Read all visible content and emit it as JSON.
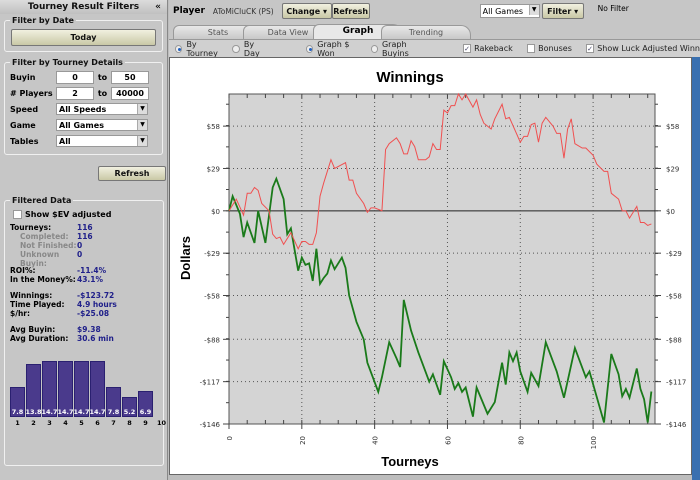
{
  "left_panel": {
    "title": "Tourney Result Filters",
    "collapse_icon": "«",
    "date": {
      "legend": "Filter by Date",
      "today": "Today"
    },
    "details": {
      "legend": "Filter by Tourney Details",
      "buyin_label": "Buyin",
      "buyin_from": "0",
      "to1": "to",
      "buyin_to": "50",
      "players_label": "# Players",
      "players_from": "2",
      "to2": "to",
      "players_to": "40000",
      "speed_label": "Speed",
      "speed_value": "All Speeds",
      "game_label": "Game",
      "game_value": "All Games",
      "tables_label": "Tables",
      "tables_value": "All"
    },
    "refresh": "Refresh",
    "filtered": {
      "legend": "Filtered Data",
      "ev_label": "Show $EV adjusted",
      "stats": [
        {
          "k": "Tourneys:",
          "v": "116",
          "sub": false
        },
        {
          "k": "Completed:",
          "v": "116",
          "sub": true
        },
        {
          "k": "Not Finished:",
          "v": "0",
          "sub": true
        },
        {
          "k": "Unknown Buyin:",
          "v": "0",
          "sub": true
        },
        {
          "k": "ROI%:",
          "v": "-11.4%",
          "sub": false,
          "gap": true
        },
        {
          "k": "In the Money%:",
          "v": "43.1%",
          "sub": false
        },
        {
          "k": "Winnings:",
          "v": "-$123.72",
          "sub": false,
          "gap": true
        },
        {
          "k": "Time Played:",
          "v": "4.9 hours",
          "sub": false
        },
        {
          "k": "$/hr:",
          "v": "-$25.08",
          "sub": false
        },
        {
          "k": "Avg Buyin:",
          "v": "$9.38",
          "sub": false,
          "gap": true
        },
        {
          "k": "Avg Duration:",
          "v": "30.6 min",
          "sub": false
        }
      ],
      "histogram": {
        "labels": [
          "1",
          "2",
          "3",
          "4",
          "5",
          "6",
          "7",
          "8",
          "9",
          "10"
        ],
        "values": [
          7.8,
          13.8,
          14.7,
          14.7,
          14.7,
          14.7,
          7.8,
          5.2,
          6.9,
          null
        ],
        "value_labels": [
          "7.8",
          "13.8",
          "14.7",
          "14.7",
          "14.7",
          "14.7",
          "7.8",
          "5.2",
          "6.9",
          ""
        ]
      }
    }
  },
  "toolbar": {
    "player_label": "Player",
    "player_name": "AToMiCluCK (PS)",
    "change": "Change",
    "change_arrow": "▾",
    "refresh": "Refresh",
    "games_value": "All Games",
    "filter": "Filter",
    "filter_arrow": "▾",
    "filter_status": "No Filter"
  },
  "tabs": [
    {
      "label": "Stats"
    },
    {
      "label": "Data View"
    },
    {
      "label": "Graph",
      "active": true
    },
    {
      "label": "Trending"
    }
  ],
  "options": {
    "by_tourney": "By Tourney",
    "by_day": "By Day",
    "graph_won": "Graph $ Won",
    "graph_buyins": "Graph Buyins",
    "rakeback": "Rakeback",
    "bonuses": "Bonuses",
    "luck": "Show Luck Adjusted Winn",
    "check": "✓"
  },
  "colors": {
    "actual": "#1a7a1a",
    "luck": "#f05050"
  },
  "chart_data": {
    "type": "line",
    "title": "Winnings",
    "xlabel": "Tourneys",
    "ylabel": "Dollars",
    "xlim": [
      0,
      117
    ],
    "ylim": [
      -146,
      80
    ],
    "xticks": [
      0,
      20,
      40,
      60,
      80,
      100
    ],
    "yticks": [
      {
        "v": 58,
        "l": "$58"
      },
      {
        "v": 29,
        "l": "$29"
      },
      {
        "v": 0,
        "l": "$0"
      },
      {
        "v": -29,
        "l": "-$29"
      },
      {
        "v": -58,
        "l": "-$58"
      },
      {
        "v": -88,
        "l": "-$88"
      },
      {
        "v": -117,
        "l": "-$117"
      },
      {
        "v": -146,
        "l": "-$146"
      }
    ],
    "grid": true,
    "series": [
      {
        "name": "Winnings",
        "color": "#1a7a1a",
        "points": [
          [
            0,
            0
          ],
          [
            1,
            10
          ],
          [
            3,
            -2
          ],
          [
            4,
            -18
          ],
          [
            5,
            -8
          ],
          [
            7,
            -22
          ],
          [
            8,
            0
          ],
          [
            10,
            -22
          ],
          [
            12,
            16
          ],
          [
            13,
            22
          ],
          [
            15,
            8
          ],
          [
            16,
            -16
          ],
          [
            17,
            -12
          ],
          [
            19,
            -41
          ],
          [
            20,
            -32
          ],
          [
            21,
            -37
          ],
          [
            22,
            -36
          ],
          [
            23,
            -48
          ],
          [
            24,
            -26
          ],
          [
            25,
            -50
          ],
          [
            26,
            -46
          ],
          [
            27,
            -43
          ],
          [
            28,
            -34
          ],
          [
            29,
            -40
          ],
          [
            31,
            -32
          ],
          [
            32,
            -39
          ],
          [
            33,
            -58
          ],
          [
            35,
            -76
          ],
          [
            37,
            -88
          ],
          [
            38,
            -104
          ],
          [
            41,
            -124
          ],
          [
            42,
            -114
          ],
          [
            44,
            -90
          ],
          [
            46,
            -101
          ],
          [
            47,
            -107
          ],
          [
            48,
            -61
          ],
          [
            50,
            -82
          ],
          [
            52,
            -97
          ],
          [
            55,
            -117
          ],
          [
            56,
            -112
          ],
          [
            58,
            -126
          ],
          [
            59,
            -103
          ],
          [
            61,
            -114
          ],
          [
            62,
            -122
          ],
          [
            63,
            -118
          ],
          [
            64,
            -124
          ],
          [
            65,
            -121
          ],
          [
            67,
            -141
          ],
          [
            68,
            -121
          ],
          [
            71,
            -139
          ],
          [
            73,
            -131
          ],
          [
            75,
            -104
          ],
          [
            76,
            -119
          ],
          [
            77,
            -97
          ],
          [
            78,
            -103
          ],
          [
            79,
            -97
          ],
          [
            80,
            -110
          ],
          [
            82,
            -124
          ],
          [
            83,
            -111
          ],
          [
            85,
            -120
          ],
          [
            87,
            -90
          ],
          [
            90,
            -110
          ],
          [
            92,
            -128
          ],
          [
            95,
            -94
          ],
          [
            98,
            -114
          ],
          [
            99,
            -110
          ],
          [
            103,
            -145
          ],
          [
            105,
            -98
          ],
          [
            107,
            -112
          ],
          [
            108,
            -127
          ],
          [
            109,
            -122
          ],
          [
            110,
            -128
          ],
          [
            112,
            -108
          ],
          [
            113,
            -122
          ],
          [
            114,
            -129
          ],
          [
            115,
            -145
          ],
          [
            116,
            -123.72
          ]
        ]
      },
      {
        "name": "Luck Adjusted",
        "color": "#f05050",
        "points": [
          [
            0,
            0
          ],
          [
            2,
            8
          ],
          [
            4,
            -3
          ],
          [
            5,
            12
          ],
          [
            6,
            12
          ],
          [
            7,
            16
          ],
          [
            8,
            14
          ],
          [
            9,
            5
          ],
          [
            11,
            0
          ],
          [
            12,
            -16
          ],
          [
            13,
            -19
          ],
          [
            14,
            -18
          ],
          [
            15,
            -23
          ],
          [
            17,
            -15
          ],
          [
            19,
            -26
          ],
          [
            20,
            -21
          ],
          [
            21,
            -21
          ],
          [
            22,
            -23
          ],
          [
            23,
            -23
          ],
          [
            24,
            -15
          ],
          [
            25,
            10
          ],
          [
            26,
            19
          ],
          [
            28,
            35
          ],
          [
            29,
            29
          ],
          [
            32,
            33
          ],
          [
            33,
            21
          ],
          [
            34,
            21
          ],
          [
            35,
            12
          ],
          [
            37,
            5
          ],
          [
            38,
            -1
          ],
          [
            39,
            2
          ],
          [
            40,
            2
          ],
          [
            42,
            0
          ],
          [
            43,
            42
          ],
          [
            44,
            46
          ],
          [
            46,
            50
          ],
          [
            47,
            46
          ],
          [
            48,
            39
          ],
          [
            49,
            39
          ],
          [
            50,
            48
          ],
          [
            51,
            44
          ],
          [
            52,
            35
          ],
          [
            54,
            35
          ],
          [
            55,
            37
          ],
          [
            56,
            46
          ],
          [
            57,
            42
          ],
          [
            58,
            42
          ],
          [
            59,
            69
          ],
          [
            60,
            67
          ],
          [
            61,
            72
          ],
          [
            62,
            72
          ],
          [
            63,
            80
          ],
          [
            64,
            76
          ],
          [
            65,
            80
          ],
          [
            67,
            71
          ],
          [
            68,
            76
          ],
          [
            69,
            66
          ],
          [
            70,
            60
          ],
          [
            72,
            56
          ],
          [
            73,
            63
          ],
          [
            75,
            73
          ],
          [
            76,
            63
          ],
          [
            77,
            64
          ],
          [
            80,
            47
          ],
          [
            81,
            51
          ],
          [
            82,
            51
          ],
          [
            83,
            59
          ],
          [
            84,
            60
          ],
          [
            85,
            47
          ],
          [
            86,
            60
          ],
          [
            87,
            64
          ],
          [
            89,
            58
          ],
          [
            90,
            53
          ],
          [
            91,
            53
          ],
          [
            92,
            36
          ],
          [
            93,
            56
          ],
          [
            94,
            63
          ],
          [
            95,
            46
          ],
          [
            97,
            43
          ],
          [
            98,
            43
          ],
          [
            100,
            38
          ],
          [
            101,
            32
          ],
          [
            103,
            27
          ],
          [
            104,
            27
          ],
          [
            105,
            12
          ],
          [
            107,
            8
          ],
          [
            108,
            0
          ],
          [
            109,
            0
          ],
          [
            110,
            -5
          ],
          [
            112,
            3
          ],
          [
            113,
            -8
          ],
          [
            114,
            -8
          ],
          [
            115,
            -10
          ],
          [
            116,
            -9
          ]
        ]
      }
    ]
  }
}
